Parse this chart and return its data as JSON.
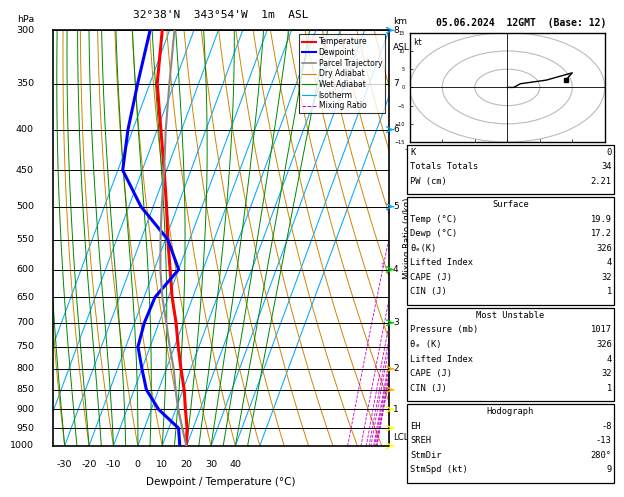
{
  "title_left": "32°38'N  343°54'W  1m  ASL",
  "title_right": "05.06.2024  12GMT  (Base: 12)",
  "xlabel": "Dewpoint / Temperature (°C)",
  "pressure_levels": [
    300,
    350,
    400,
    450,
    500,
    550,
    600,
    650,
    700,
    750,
    800,
    850,
    900,
    950,
    1000
  ],
  "pressure_min": 300,
  "pressure_max": 1000,
  "temp_min": -35,
  "temp_max": 40,
  "skew_amount": 63.0,
  "temp_profile_p": [
    1000,
    950,
    900,
    850,
    800,
    750,
    700,
    650,
    600,
    550,
    500,
    450,
    400,
    350,
    300
  ],
  "temp_profile_t": [
    19.9,
    17.5,
    14.0,
    10.5,
    6.0,
    1.5,
    -3.0,
    -8.5,
    -13.5,
    -19.0,
    -24.5,
    -31.0,
    -38.5,
    -47.0,
    -53.0
  ],
  "dewp_profile_p": [
    1000,
    950,
    900,
    850,
    800,
    750,
    700,
    650,
    600,
    550,
    500,
    450,
    400,
    350,
    300
  ],
  "dewp_profile_t": [
    17.2,
    14.0,
    3.0,
    -5.0,
    -10.0,
    -15.0,
    -16.0,
    -15.5,
    -10.0,
    -19.0,
    -35.0,
    -48.0,
    -52.0,
    -55.0,
    -58.0
  ],
  "parcel_p": [
    1000,
    950,
    900,
    850,
    800,
    750,
    700,
    650,
    600,
    550,
    500,
    450,
    400,
    350,
    300
  ],
  "parcel_t": [
    19.9,
    15.5,
    11.0,
    7.0,
    3.0,
    -2.0,
    -7.0,
    -12.5,
    -17.5,
    -22.0,
    -26.5,
    -31.0,
    -36.5,
    -42.0,
    -48.0
  ],
  "isotherm_color": "#00aaff",
  "dry_adiabat_color": "#cc8800",
  "wet_adiabat_color": "#008800",
  "mixing_ratio_color": "#cc00cc",
  "temp_color": "#ff0000",
  "dewpoint_color": "#0000ff",
  "parcel_color": "#888888",
  "mixing_ratio_vals": [
    1,
    2,
    3,
    4,
    5,
    8,
    10,
    15,
    20,
    25
  ],
  "km_map_km": [
    1,
    2,
    3,
    4,
    5,
    6,
    7,
    8
  ],
  "km_map_p": [
    900,
    800,
    700,
    600,
    500,
    400,
    350,
    300
  ],
  "lcl_pressure": 975,
  "K": "0",
  "Totals_Totals": "34",
  "PW_cm": "2.21",
  "Surf_Temp": "19.9",
  "Surf_Dewp": "17.2",
  "Surf_theta_e": "326",
  "Surf_LI": "4",
  "Surf_CAPE": "32",
  "Surf_CIN": "1",
  "MU_Pressure": "1017",
  "MU_theta_e": "326",
  "MU_LI": "4",
  "MU_CAPE": "32",
  "MU_CIN": "1",
  "Hodo_EH": "-8",
  "Hodo_SREH": "-13",
  "Hodo_StmDir": "280°",
  "Hodo_StmSpd": "9",
  "hodo_u": [
    0,
    1,
    2,
    6,
    10,
    9
  ],
  "hodo_v": [
    0,
    0,
    1,
    2,
    4,
    2
  ],
  "watermark": "© weatheronline.co.uk",
  "wind_barb_colors_p": [
    300,
    400,
    500,
    600,
    700,
    800,
    850,
    900,
    950,
    1000
  ],
  "wind_barb_colors": [
    "#00aaff",
    "#00aaff",
    "#00aaff",
    "#00cc00",
    "#00cc00",
    "#ffaa00",
    "#ffaa00",
    "#ffff00",
    "#ffff00",
    "#ffff00"
  ]
}
